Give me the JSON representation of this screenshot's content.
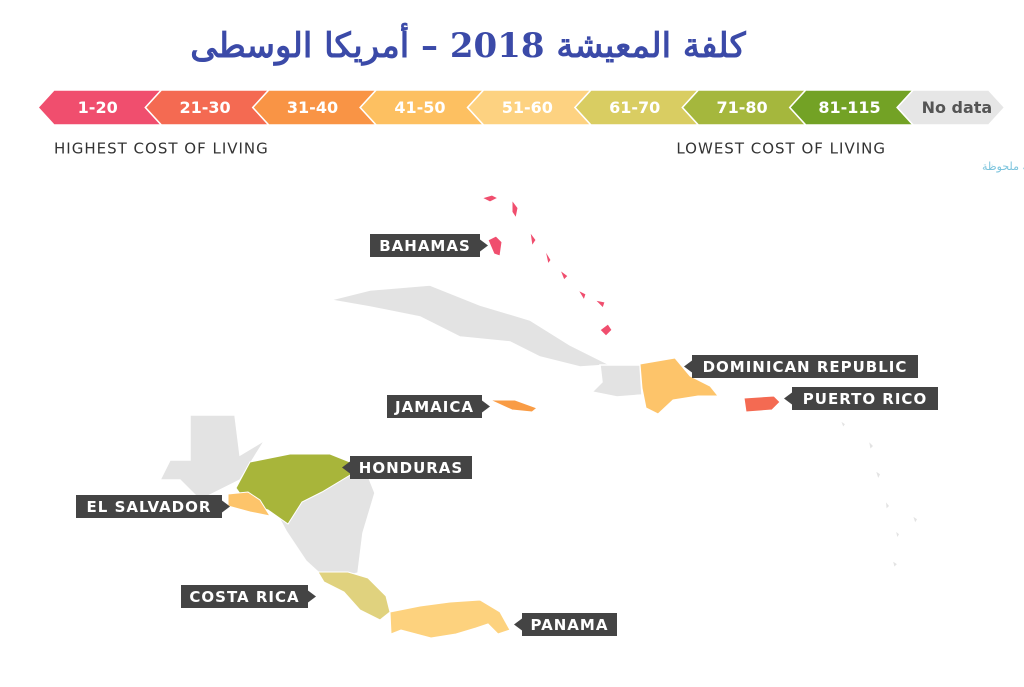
{
  "title": "كلفة المعيشة 2018 – أمريكا الوسطى",
  "legend": [
    {
      "label": "1-20",
      "color": "#f04e6e"
    },
    {
      "label": "21-30",
      "color": "#f46a52"
    },
    {
      "label": "31-40",
      "color": "#f99445"
    },
    {
      "label": "41-50",
      "color": "#fdc061"
    },
    {
      "label": "51-60",
      "color": "#fdd281"
    },
    {
      "label": "61-70",
      "color": "#d9cd62"
    },
    {
      "label": "71-80",
      "color": "#a5b73d"
    },
    {
      "label": "81-115",
      "color": "#73a225"
    },
    {
      "label": "No data",
      "color": "#e6e6e6"
    }
  ],
  "legend_notes": {
    "left": "HIGHEST COST OF LIVING",
    "right": "LOWEST COST OF LIVING"
  },
  "watermark": "مدوّنة ملحوظة",
  "countries": [
    {
      "name": "BAHAMAS",
      "color": "#f04e6e"
    },
    {
      "name": "DOMINICAN REPUBLIC",
      "color": "#fdc46a"
    },
    {
      "name": "PUERTO RICO",
      "color": "#f46a52"
    },
    {
      "name": "JAMAICA",
      "color": "#f99c45"
    },
    {
      "name": "HONDURAS",
      "color": "#a8b53a"
    },
    {
      "name": "EL SALVADOR",
      "color": "#fdc46a"
    },
    {
      "name": "COSTA RICA",
      "color": "#e0d27e"
    },
    {
      "name": "PANAMA",
      "color": "#fdd27e"
    }
  ]
}
